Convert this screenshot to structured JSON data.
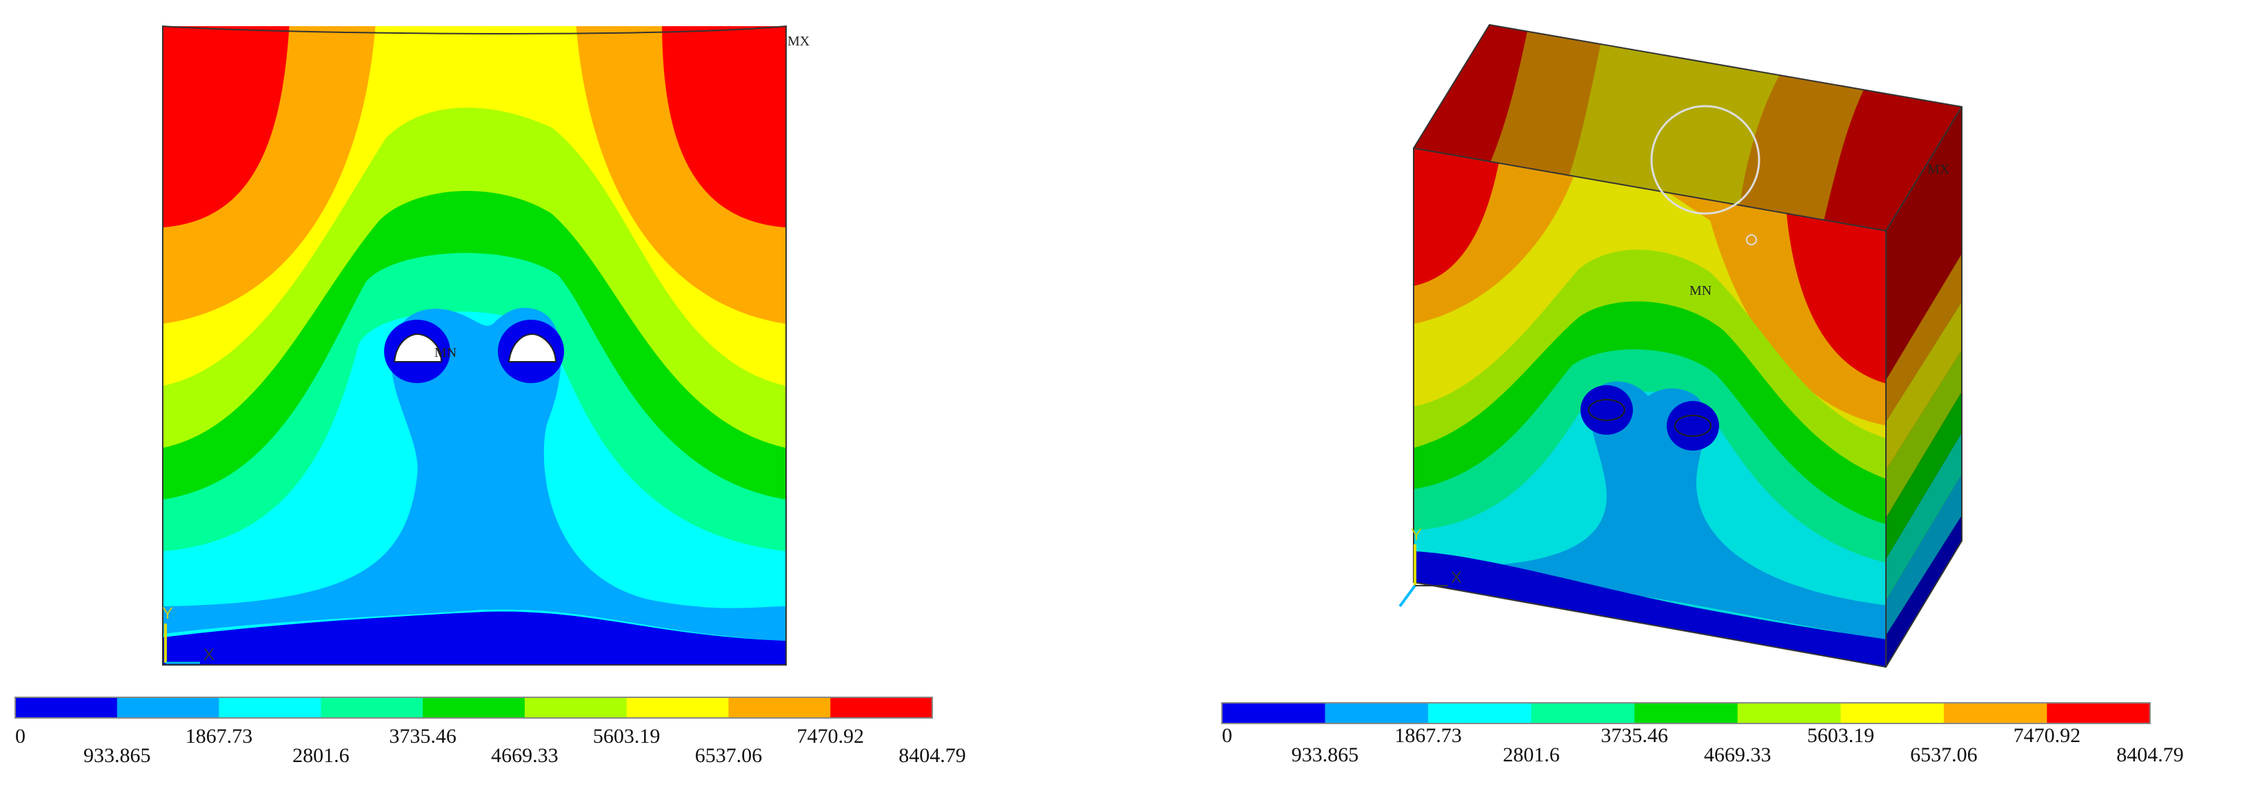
{
  "palette": [
    "#0000ee",
    "#00a8ff",
    "#00ffff",
    "#00ff99",
    "#00dd00",
    "#aaff00",
    "#ffff00",
    "#ffaa00",
    "#ff0000"
  ],
  "legends": [
    {
      "name": "left",
      "upper_labels": [
        "0",
        "1867.73",
        "3735.46",
        "5603.19",
        "7470.92"
      ],
      "lower_labels": [
        "933.865",
        "2801.6",
        "4669.33",
        "6537.06",
        "8404.79"
      ]
    },
    {
      "name": "right",
      "upper_labels": [
        "0",
        "1867.73",
        "3735.46",
        "5603.19",
        "7470.92"
      ],
      "lower_labels": [
        "933.865",
        "2801.6",
        "4669.33",
        "6537.06",
        "8404.79"
      ]
    }
  ],
  "left_panel": {
    "mx": "MX",
    "mn": "MN",
    "axis_y": "Y",
    "axis_x": "X"
  },
  "right_panel": {
    "mx": "MX",
    "mn": "MN",
    "axis_y": "Y",
    "axis_x": "X"
  }
}
